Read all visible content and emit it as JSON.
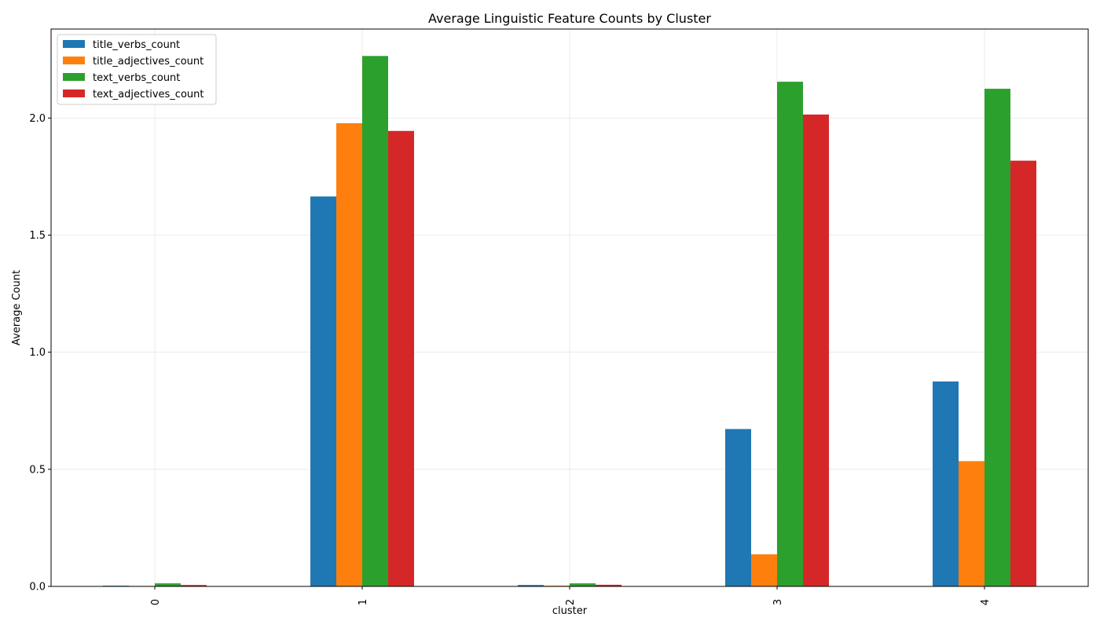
{
  "chart_data": {
    "type": "bar",
    "title": "Average Linguistic Feature Counts by Cluster",
    "xlabel": "cluster",
    "ylabel": "Average Count",
    "categories": [
      "0",
      "1",
      "2",
      "3",
      "4"
    ],
    "ylim": [
      0,
      2.38
    ],
    "yticks": [
      "0.0",
      "0.5",
      "1.0",
      "1.5",
      "2.0"
    ],
    "grid": true,
    "legend_position": "top-left",
    "series": [
      {
        "name": "title_verbs_count",
        "color": "#1f77b4",
        "values": [
          0.003,
          1.665,
          0.006,
          0.672,
          0.875
        ]
      },
      {
        "name": "title_adjectives_count",
        "color": "#ff7f0e",
        "values": [
          0.002,
          1.978,
          0.003,
          0.137,
          0.535
        ]
      },
      {
        "name": "text_verbs_count",
        "color": "#2ca02c",
        "values": [
          0.013,
          2.265,
          0.013,
          2.155,
          2.125
        ]
      },
      {
        "name": "text_adjectives_count",
        "color": "#d62728",
        "values": [
          0.006,
          1.945,
          0.007,
          2.015,
          1.818
        ]
      }
    ]
  }
}
